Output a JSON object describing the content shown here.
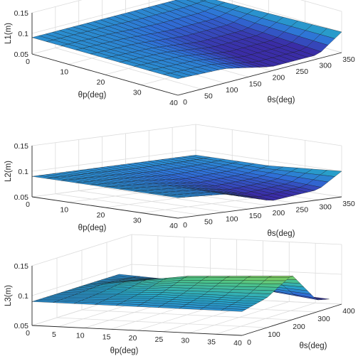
{
  "chart_data": [
    {
      "type": "surface",
      "zlabel": "L1(m)",
      "xlabel": "θp(deg)",
      "ylabel": "θs(deg)",
      "zlim": [
        0.05,
        0.15
      ],
      "xlim": [
        0,
        40
      ],
      "ylim": [
        0,
        350
      ],
      "z_ticks": [
        "0.05",
        "0.1",
        "0.15"
      ],
      "x_ticks": [
        "0",
        "10",
        "20",
        "30",
        "40"
      ],
      "y_ticks": [
        "0",
        "50",
        "100",
        "150",
        "200",
        "250",
        "300",
        "350"
      ],
      "grid": true,
      "colormap": [
        "#3a2da7",
        "#2f70d8",
        "#27a5c8",
        "#4cc38a",
        "#a6d742"
      ],
      "surface": {
        "rows": [
          {
            "theta_s": 0,
            "z": [
              0.09,
              0.09,
              0.09
            ]
          },
          {
            "theta_s": 100,
            "z": [
              0.09,
              0.085,
              0.085
            ]
          },
          {
            "theta_s": 200,
            "z": [
              0.09,
              0.07,
              0.06
            ]
          },
          {
            "theta_s": 300,
            "z": [
              0.09,
              0.07,
              0.06
            ]
          },
          {
            "theta_s": 350,
            "z": [
              0.09,
              0.095,
              0.1
            ]
          }
        ],
        "theta_p": [
          0,
          20,
          40
        ]
      }
    },
    {
      "type": "surface",
      "zlabel": "L2(m)",
      "xlabel": "θp(deg)",
      "ylabel": "θs(deg)",
      "zlim": [
        0.05,
        0.15
      ],
      "xlim": [
        0,
        40
      ],
      "ylim": [
        0,
        350
      ],
      "z_ticks": [
        "0.05",
        "0.1",
        "0.15"
      ],
      "x_ticks": [
        "0",
        "10",
        "20",
        "30",
        "40"
      ],
      "y_ticks": [
        "0",
        "50",
        "100",
        "150",
        "200",
        "250",
        "300",
        "350"
      ],
      "grid": true,
      "colormap": [
        "#3a2da7",
        "#2f70d8",
        "#27a5c8",
        "#4cc38a",
        "#a6d742"
      ],
      "surface": {
        "rows": [
          {
            "theta_s": 0,
            "z": [
              0.09,
              0.09,
              0.09
            ]
          },
          {
            "theta_s": 100,
            "z": [
              0.09,
              0.085,
              0.085
            ]
          },
          {
            "theta_s": 200,
            "z": [
              0.09,
              0.075,
              0.06
            ]
          },
          {
            "theta_s": 300,
            "z": [
              0.09,
              0.08,
              0.07
            ]
          },
          {
            "theta_s": 350,
            "z": [
              0.09,
              0.09,
              0.1
            ]
          }
        ],
        "theta_p": [
          0,
          20,
          40
        ]
      }
    },
    {
      "type": "surface",
      "zlabel": "L3(m)",
      "xlabel": "θp(deg)",
      "ylabel": "θs(deg)",
      "zlim": [
        0.05,
        0.15
      ],
      "xlim": [
        0,
        40
      ],
      "ylim": [
        0,
        400
      ],
      "z_ticks": [
        "0.05",
        "0.1",
        "0.15"
      ],
      "x_ticks": [
        "0",
        "5",
        "10",
        "15",
        "20",
        "25",
        "30",
        "35",
        "40"
      ],
      "y_ticks": [
        "0",
        "100",
        "200",
        "300",
        "400"
      ],
      "grid": true,
      "colormap": [
        "#3a2da7",
        "#2f70d8",
        "#27a5c8",
        "#4cc38a",
        "#a6d742"
      ],
      "surface": {
        "rows": [
          {
            "theta_s": 0,
            "z": [
              0.09,
              0.09,
              0.09
            ]
          },
          {
            "theta_s": 100,
            "z": [
              0.09,
              0.1,
              0.1
            ]
          },
          {
            "theta_s": 200,
            "z": [
              0.09,
              0.115,
              0.125
            ]
          },
          {
            "theta_s": 300,
            "z": [
              0.09,
              0.095,
              0.07
            ]
          },
          {
            "theta_s": 350,
            "z": [
              0.09,
              0.08,
              0.065
            ]
          }
        ],
        "theta_p": [
          0,
          20,
          40
        ]
      }
    }
  ]
}
